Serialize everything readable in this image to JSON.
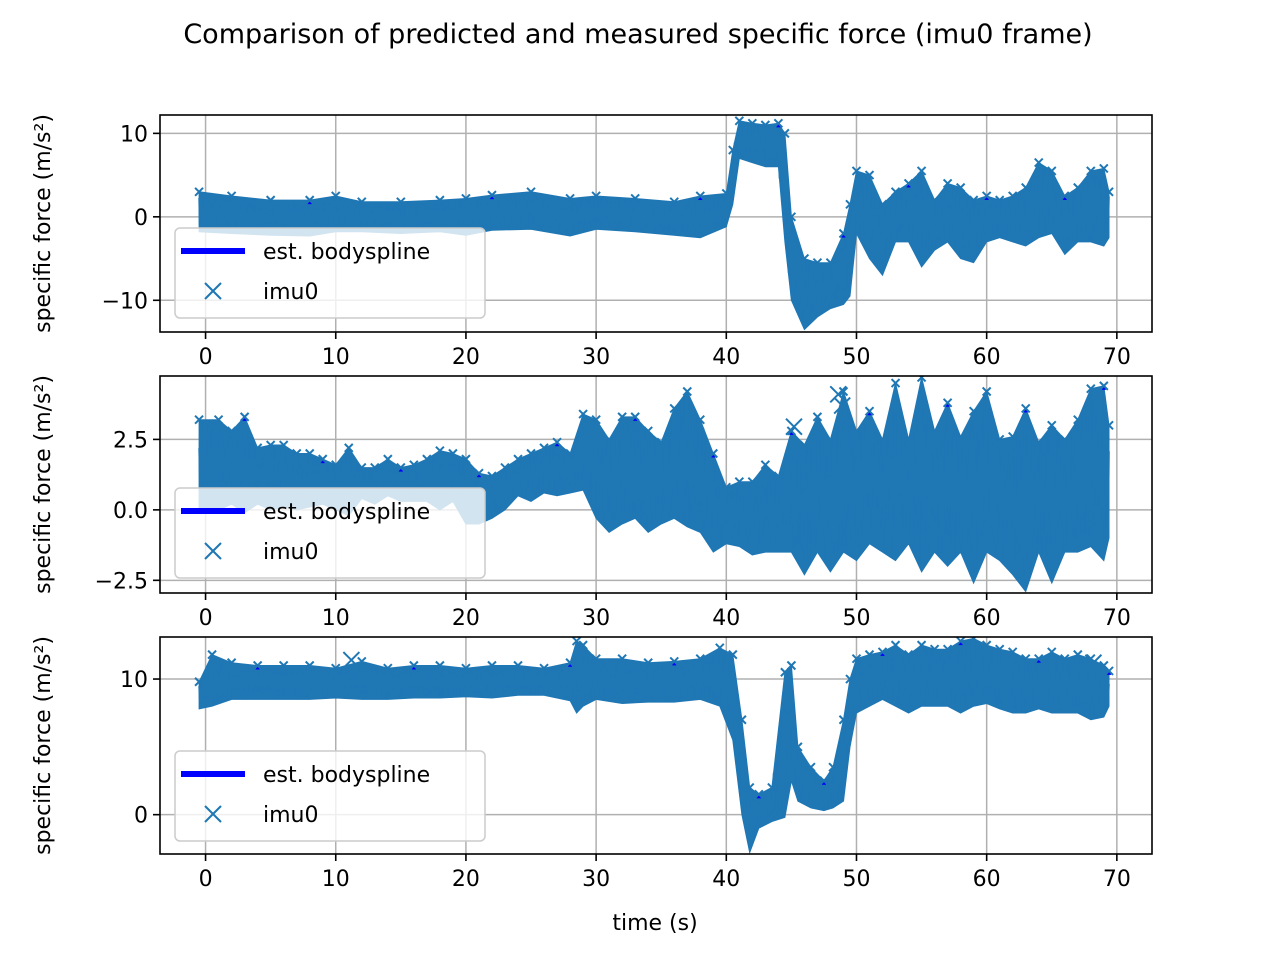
{
  "figure": {
    "title": "Comparison of predicted and measured specific force (imu0 frame)"
  },
  "colors": {
    "band": "#1f77b4",
    "estimate": "#0000ff",
    "grid": "#b0b0b0"
  },
  "chart_data": [
    {
      "type": "line",
      "panel": "top",
      "ylabel_text": "specific force",
      "ylabel_unit": "(m/s²)",
      "xlim": [
        -3.5,
        72.7
      ],
      "ylim": [
        -13.8,
        12.2
      ],
      "xticks": [
        0,
        10,
        20,
        30,
        40,
        50,
        60,
        70
      ],
      "yticks": [
        -10,
        0,
        10
      ],
      "ytick_labels": [
        "−10",
        "0",
        "10"
      ],
      "grid": true,
      "legend": {
        "placement": "lower-left",
        "entries": [
          "est. bodyspline",
          "imu0"
        ]
      },
      "series": [
        {
          "name": "imu0",
          "marker": "x",
          "x": [
            -0.5,
            2,
            5,
            8,
            10,
            12,
            15,
            18,
            20,
            22,
            25,
            28,
            30,
            33,
            36,
            38,
            40,
            40.5,
            41,
            42,
            43,
            44,
            44.5,
            45,
            46,
            47,
            48,
            49,
            49.5,
            50,
            51,
            52,
            53,
            54,
            55,
            56,
            57,
            58,
            59,
            60,
            61,
            62,
            63,
            64,
            65,
            66,
            67,
            68,
            69,
            69.4
          ],
          "y_min": [
            -1.8,
            -2.0,
            -2.2,
            -2.3,
            -1.8,
            -1.8,
            -2.0,
            -1.8,
            -2.2,
            -1.6,
            -1.5,
            -2.3,
            -1.5,
            -1.8,
            -2.2,
            -2.5,
            -1.2,
            1.5,
            7.0,
            6.5,
            6.0,
            6.0,
            -3.0,
            -10.0,
            -13.5,
            -12.0,
            -11.0,
            -10.5,
            -9.5,
            -2.0,
            -5.0,
            -7.0,
            -3.0,
            -3.0,
            -6.0,
            -4.0,
            -3.0,
            -5.0,
            -5.5,
            -3.0,
            -2.5,
            -3.0,
            -3.5,
            -2.5,
            -2.0,
            -4.5,
            -3.0,
            -3.0,
            -3.5,
            -2.5
          ],
          "y_max": [
            3.0,
            2.5,
            2.0,
            2.0,
            2.5,
            1.8,
            1.8,
            2.0,
            2.2,
            2.6,
            3.0,
            2.2,
            2.5,
            2.2,
            1.8,
            2.5,
            2.8,
            8.0,
            11.5,
            11.2,
            11.0,
            11.2,
            10.0,
            0.0,
            -5.0,
            -5.5,
            -5.5,
            -2.0,
            1.5,
            5.5,
            5.0,
            1.5,
            3.0,
            4.0,
            5.5,
            2.0,
            4.0,
            3.5,
            2.0,
            2.5,
            2.0,
            2.5,
            3.5,
            6.5,
            5.5,
            2.5,
            3.5,
            5.5,
            5.8,
            3.0
          ]
        },
        {
          "name": "est. bodyspline",
          "line": "solid"
        }
      ]
    },
    {
      "type": "line",
      "panel": "middle",
      "ylabel_text": "specific force",
      "ylabel_unit": "(m/s²)",
      "xlim": [
        -3.5,
        72.7
      ],
      "ylim": [
        -2.95,
        4.75
      ],
      "xticks": [
        0,
        10,
        20,
        30,
        40,
        50,
        60,
        70
      ],
      "yticks": [
        -2.5,
        0,
        2.5
      ],
      "ytick_labels": [
        "−2.5",
        "0.0",
        "2.5"
      ],
      "grid": true,
      "legend": {
        "placement": "lower-left",
        "entries": [
          "est. bodyspline",
          "imu0"
        ]
      },
      "outlier_marks": [
        {
          "x": 45.2,
          "y": 2.95
        },
        {
          "x": 48.6,
          "y": 4.1
        },
        {
          "x": 48.9,
          "y": 3.7
        }
      ],
      "series": [
        {
          "name": "imu0",
          "marker": "x",
          "x": [
            -0.5,
            1,
            2,
            3,
            4,
            5,
            6,
            7,
            8,
            9,
            10,
            11,
            12,
            13,
            14,
            15,
            16,
            17,
            18,
            19,
            20,
            21,
            22,
            23,
            24,
            25,
            26,
            27,
            28,
            29,
            30,
            31,
            32,
            33,
            34,
            35,
            36,
            37,
            38,
            39,
            40,
            41,
            42,
            43,
            44,
            45,
            46,
            47,
            48,
            49,
            50,
            51,
            52,
            53,
            54,
            55,
            56,
            57,
            58,
            59,
            60,
            61,
            62,
            63,
            64,
            65,
            66,
            67,
            68,
            69,
            69.4
          ],
          "y_min": [
            0.0,
            0.0,
            0.2,
            -0.1,
            0.2,
            0.0,
            0.1,
            0.0,
            0.1,
            0.2,
            0.0,
            -0.2,
            0.4,
            0.2,
            0.5,
            0.3,
            0.3,
            0.3,
            0.0,
            0.3,
            -0.5,
            -0.5,
            -0.3,
            0.0,
            0.5,
            0.3,
            0.6,
            0.5,
            0.6,
            0.7,
            -0.3,
            -0.8,
            -0.5,
            -0.3,
            -0.8,
            -0.5,
            -0.3,
            -0.6,
            -0.8,
            -1.5,
            -1.2,
            -1.3,
            -1.6,
            -1.5,
            -1.5,
            -1.5,
            -2.3,
            -1.5,
            -2.2,
            -1.5,
            -1.8,
            -1.2,
            -1.5,
            -1.8,
            -1.2,
            -2.2,
            -1.5,
            -2.0,
            -1.5,
            -2.6,
            -1.5,
            -1.8,
            -2.3,
            -2.9,
            -1.5,
            -2.6,
            -1.5,
            -1.5,
            -1.3,
            -1.8,
            -1.0
          ],
          "y_max": [
            3.2,
            3.2,
            2.8,
            3.3,
            2.2,
            2.3,
            2.3,
            2.0,
            2.0,
            1.8,
            1.6,
            2.2,
            1.5,
            1.5,
            1.8,
            1.5,
            1.6,
            1.8,
            2.1,
            2.0,
            1.8,
            1.3,
            1.2,
            1.5,
            1.8,
            2.0,
            2.2,
            2.4,
            2.0,
            3.4,
            3.2,
            2.5,
            3.3,
            3.3,
            2.8,
            2.4,
            3.6,
            4.2,
            3.2,
            2.0,
            0.8,
            1.0,
            1.0,
            1.6,
            1.2,
            2.8,
            2.3,
            3.3,
            2.5,
            4.2,
            2.8,
            3.5,
            2.5,
            4.5,
            2.5,
            4.7,
            2.8,
            3.8,
            2.6,
            3.5,
            4.2,
            2.5,
            2.6,
            3.6,
            2.4,
            3.0,
            2.5,
            3.2,
            4.3,
            4.4,
            3.0
          ]
        },
        {
          "name": "est. bodyspline",
          "line": "solid"
        }
      ]
    },
    {
      "type": "line",
      "panel": "bottom",
      "ylabel_text": "specific force",
      "ylabel_unit": "(m/s²)",
      "xlabel": "time (s)",
      "xlim": [
        -3.5,
        72.7
      ],
      "ylim": [
        -2.9,
        13.1
      ],
      "xticks": [
        0,
        10,
        20,
        30,
        40,
        50,
        60,
        70
      ],
      "yticks": [
        0,
        10
      ],
      "ytick_labels": [
        "0",
        "10"
      ],
      "grid": true,
      "legend": {
        "placement": "lower-left",
        "entries": [
          "est. bodyspline",
          "imu0"
        ]
      },
      "outlier_marks": [
        {
          "x": 11.2,
          "y": 11.4
        },
        {
          "x": 68.2,
          "y": 11.2
        }
      ],
      "series": [
        {
          "name": "imu0",
          "marker": "x",
          "x": [
            -0.5,
            0.5,
            2,
            4,
            6,
            8,
            10,
            12,
            14,
            16,
            18,
            20,
            22,
            24,
            26,
            28,
            28.5,
            29,
            30,
            32,
            34,
            36,
            38,
            39.5,
            40.5,
            41.2,
            41.8,
            42.5,
            43.5,
            44.5,
            45,
            45.5,
            46.5,
            47.5,
            48.2,
            49,
            49.5,
            50,
            51,
            52,
            53,
            54,
            55,
            56,
            57,
            58,
            59,
            60,
            61,
            62,
            63,
            64,
            65,
            66,
            67,
            68,
            69,
            69.4
          ],
          "y_min": [
            7.8,
            8.0,
            8.5,
            8.5,
            8.5,
            8.5,
            8.6,
            8.5,
            8.5,
            8.6,
            8.6,
            8.7,
            8.6,
            8.8,
            8.8,
            8.4,
            7.5,
            8.0,
            8.5,
            8.2,
            8.3,
            8.3,
            8.5,
            8.0,
            5.5,
            0.0,
            -2.8,
            -1.0,
            -0.5,
            -0.2,
            2.5,
            1.0,
            0.5,
            0.3,
            0.5,
            1.0,
            5.0,
            7.5,
            8.0,
            8.5,
            8.0,
            7.5,
            8.0,
            8.0,
            8.0,
            7.5,
            8.0,
            8.2,
            7.8,
            7.5,
            7.5,
            7.8,
            7.5,
            7.5,
            7.5,
            7.0,
            7.2,
            8.0
          ],
          "y_max": [
            9.8,
            11.8,
            11.2,
            11.0,
            11.0,
            11.0,
            10.8,
            11.3,
            10.8,
            11.0,
            11.0,
            10.8,
            11.0,
            11.0,
            10.8,
            11.2,
            12.8,
            12.5,
            11.5,
            11.5,
            11.2,
            11.3,
            11.5,
            12.3,
            11.8,
            7.0,
            2.0,
            1.5,
            2.0,
            10.5,
            11.0,
            5.0,
            3.5,
            2.5,
            3.5,
            7.0,
            10.0,
            11.5,
            11.8,
            12.0,
            12.5,
            11.8,
            12.5,
            12.2,
            12.2,
            12.8,
            13.0,
            12.5,
            12.2,
            12.0,
            11.5,
            11.5,
            12.0,
            11.5,
            11.8,
            11.5,
            11.0,
            10.6
          ]
        },
        {
          "name": "est. bodyspline",
          "line": "solid"
        }
      ]
    }
  ]
}
